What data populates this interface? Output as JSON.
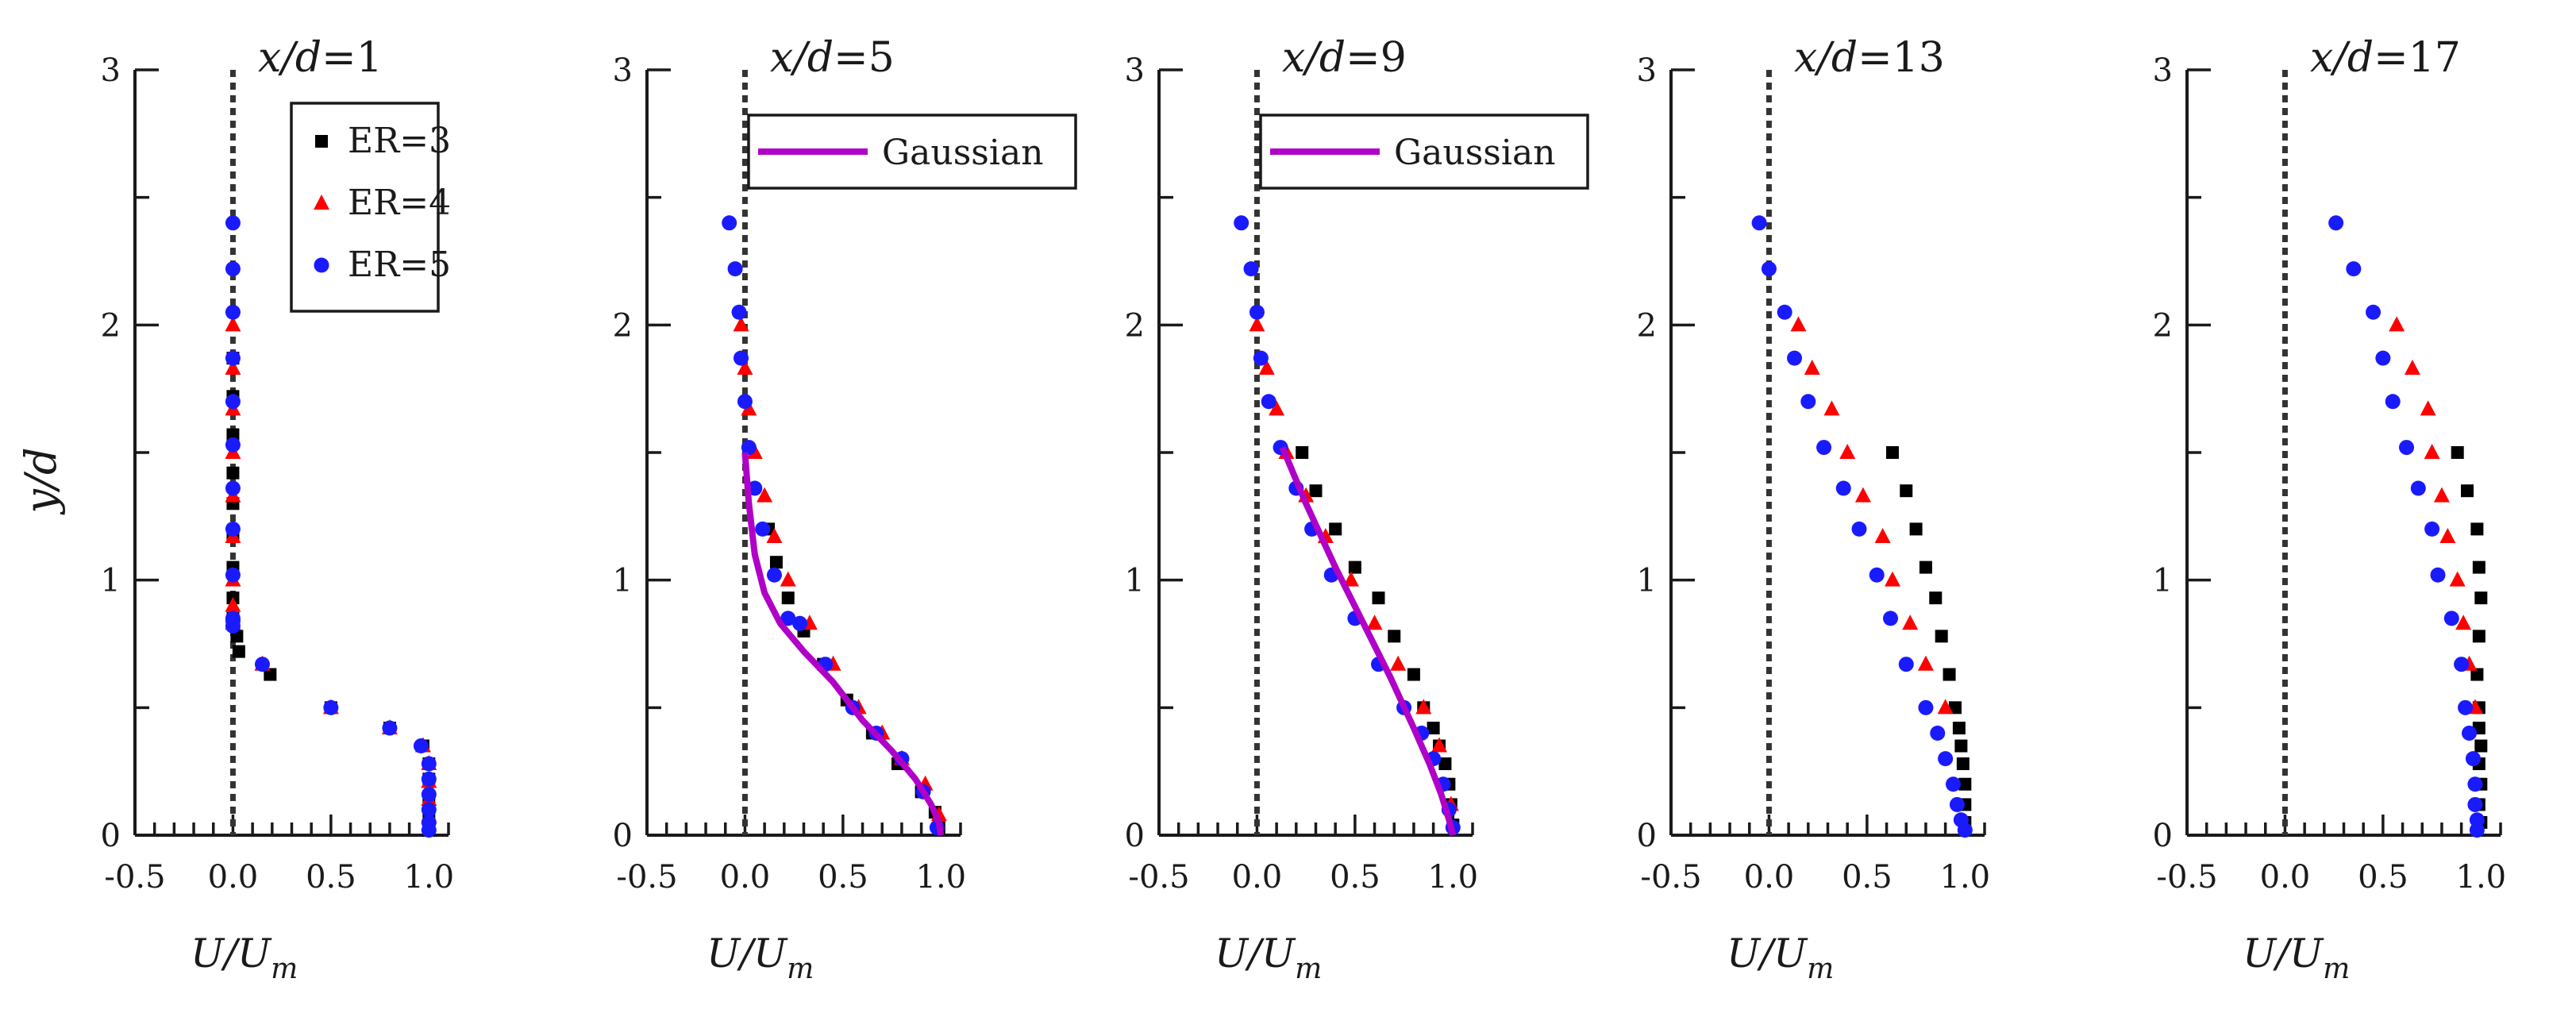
{
  "colors": {
    "er3": "#000000",
    "er4": "#ff0000",
    "er5": "#1a1aff",
    "gaussian": "#b000c8",
    "axis": "#1a1a1a"
  },
  "shared": {
    "ylabel": "y/d",
    "xlabel_main": "U/U",
    "xlabel_sub": "m",
    "xlim": [
      -0.5,
      1.1
    ],
    "ylim": [
      0,
      3
    ],
    "x_tick_labels": [
      "-0.5",
      "0.0",
      "0.5",
      "1.0"
    ],
    "y_tick_labels": [
      "0",
      "1",
      "2",
      "3"
    ]
  },
  "legend": {
    "er3": "ER=3",
    "er4": "ER=4",
    "er5": "ER=5",
    "gaussian": "Gaussian"
  },
  "chart_data": [
    {
      "type": "scatter",
      "title_main": "x/d",
      "title_value": "=1",
      "xlabel": "U/Um",
      "ylabel": "y/d",
      "xlim": [
        -0.5,
        1.1
      ],
      "ylim": [
        0,
        3
      ],
      "legend": "ER",
      "series": [
        {
          "name": "ER=3",
          "marker": "square",
          "x": [
            0.0,
            0.0,
            0.0,
            0.0,
            0.0,
            0.0,
            0.0,
            0.0,
            0.0,
            0.02,
            0.03,
            0.19,
            0.5,
            0.8,
            0.97,
            1.0,
            1.0,
            1.0,
            1.0,
            1.0
          ],
          "y": [
            1.87,
            1.72,
            1.57,
            1.42,
            1.3,
            1.17,
            1.05,
            0.93,
            0.85,
            0.78,
            0.72,
            0.63,
            0.5,
            0.42,
            0.35,
            0.28,
            0.22,
            0.14,
            0.07,
            0.02
          ]
        },
        {
          "name": "ER=4",
          "marker": "triangle",
          "x": [
            0.0,
            0.0,
            0.0,
            0.0,
            0.0,
            0.0,
            0.0,
            0.0,
            0.0,
            0.15,
            0.5,
            0.8,
            0.97,
            1.0,
            1.0,
            1.0,
            1.0
          ],
          "y": [
            2.0,
            1.83,
            1.67,
            1.5,
            1.33,
            1.17,
            1.0,
            0.9,
            0.83,
            0.67,
            0.5,
            0.42,
            0.35,
            0.28,
            0.21,
            0.14,
            0.07
          ]
        },
        {
          "name": "ER=5",
          "marker": "circle",
          "x": [
            0.0,
            0.0,
            0.0,
            0.0,
            0.0,
            0.0,
            0.0,
            0.0,
            0.0,
            0.0,
            0.0,
            0.0,
            0.15,
            0.5,
            0.8,
            0.96,
            1.0,
            1.0,
            1.0,
            1.0,
            1.0,
            1.0
          ],
          "y": [
            2.4,
            2.22,
            2.05,
            1.87,
            1.7,
            1.53,
            1.36,
            1.2,
            1.02,
            0.85,
            0.84,
            0.82,
            0.67,
            0.5,
            0.42,
            0.35,
            0.28,
            0.22,
            0.16,
            0.1,
            0.05,
            0.02
          ]
        }
      ]
    },
    {
      "type": "scatter",
      "title_main": "x/d",
      "title_value": "=5",
      "xlabel": "U/Um",
      "ylabel": "y/d",
      "xlim": [
        -0.5,
        1.1
      ],
      "ylim": [
        0,
        3
      ],
      "legend": "gaussian",
      "series": [
        {
          "name": "ER=3",
          "marker": "square",
          "x": [
            0.12,
            0.16,
            0.22,
            0.3,
            0.4,
            0.52,
            0.65,
            0.78,
            0.9,
            0.97,
            0.99
          ],
          "y": [
            1.2,
            1.07,
            0.93,
            0.8,
            0.67,
            0.53,
            0.4,
            0.28,
            0.17,
            0.09,
            0.03
          ]
        },
        {
          "name": "ER=4",
          "marker": "triangle",
          "x": [
            -0.02,
            0.0,
            0.02,
            0.05,
            0.1,
            0.15,
            0.22,
            0.33,
            0.45,
            0.58,
            0.7,
            0.8,
            0.92,
            0.99
          ],
          "y": [
            2.0,
            1.83,
            1.67,
            1.5,
            1.33,
            1.17,
            1.0,
            0.83,
            0.67,
            0.5,
            0.4,
            0.3,
            0.2,
            0.08
          ]
        },
        {
          "name": "ER=5",
          "marker": "circle",
          "x": [
            -0.08,
            -0.05,
            -0.03,
            -0.02,
            0.0,
            0.02,
            0.05,
            0.09,
            0.15,
            0.22,
            0.28,
            0.41,
            0.55,
            0.67,
            0.8,
            0.91,
            0.98
          ],
          "y": [
            2.4,
            2.22,
            2.05,
            1.87,
            1.7,
            1.52,
            1.36,
            1.2,
            1.02,
            0.85,
            0.83,
            0.67,
            0.5,
            0.4,
            0.3,
            0.17,
            0.03
          ]
        },
        {
          "name": "Gaussian",
          "line": true,
          "x": [
            0.0,
            0.02,
            0.05,
            0.1,
            0.18,
            0.3,
            0.45,
            0.6,
            0.75,
            0.87,
            0.95,
            0.99,
            1.0
          ],
          "y": [
            1.5,
            1.3,
            1.1,
            0.95,
            0.83,
            0.72,
            0.6,
            0.45,
            0.33,
            0.22,
            0.12,
            0.05,
            0.0
          ]
        }
      ]
    },
    {
      "type": "scatter",
      "title_main": "x/d",
      "title_value": "=9",
      "xlabel": "U/Um",
      "ylabel": "y/d",
      "xlim": [
        -0.5,
        1.1
      ],
      "ylim": [
        0,
        3
      ],
      "legend": "gaussian",
      "series": [
        {
          "name": "ER=3",
          "marker": "square",
          "x": [
            0.23,
            0.3,
            0.4,
            0.5,
            0.62,
            0.7,
            0.8,
            0.85,
            0.9,
            0.93,
            0.96,
            0.98,
            0.99,
            1.0
          ],
          "y": [
            1.5,
            1.35,
            1.2,
            1.05,
            0.93,
            0.78,
            0.63,
            0.5,
            0.42,
            0.35,
            0.28,
            0.2,
            0.12,
            0.04
          ]
        },
        {
          "name": "ER=4",
          "marker": "triangle",
          "x": [
            0.0,
            0.05,
            0.1,
            0.15,
            0.25,
            0.35,
            0.48,
            0.6,
            0.72,
            0.85,
            0.93,
            0.99
          ],
          "y": [
            2.0,
            1.83,
            1.67,
            1.5,
            1.33,
            1.17,
            1.0,
            0.83,
            0.67,
            0.5,
            0.35,
            0.12
          ]
        },
        {
          "name": "ER=5",
          "marker": "circle",
          "x": [
            -0.08,
            -0.03,
            0.0,
            0.02,
            0.06,
            0.12,
            0.2,
            0.28,
            0.38,
            0.5,
            0.62,
            0.75,
            0.84,
            0.9,
            0.95,
            0.98,
            1.0
          ],
          "y": [
            2.4,
            2.22,
            2.05,
            1.87,
            1.7,
            1.52,
            1.36,
            1.2,
            1.02,
            0.85,
            0.67,
            0.5,
            0.4,
            0.3,
            0.2,
            0.1,
            0.03
          ]
        },
        {
          "name": "Gaussian",
          "line": true,
          "x": [
            0.13,
            0.25,
            0.4,
            0.55,
            0.68,
            0.8,
            0.88,
            0.94,
            0.98,
            1.0
          ],
          "y": [
            1.52,
            1.3,
            1.05,
            0.82,
            0.62,
            0.42,
            0.28,
            0.16,
            0.06,
            0.0
          ]
        }
      ]
    },
    {
      "type": "scatter",
      "title_main": "x/d",
      "title_value": "=13",
      "xlabel": "U/Um",
      "ylabel": "y/d",
      "xlim": [
        -0.5,
        1.1
      ],
      "ylim": [
        0,
        3
      ],
      "legend": "none",
      "series": [
        {
          "name": "ER=3",
          "marker": "square",
          "x": [
            0.63,
            0.7,
            0.75,
            0.8,
            0.85,
            0.88,
            0.92,
            0.95,
            0.97,
            0.98,
            0.99,
            1.0,
            1.0,
            1.0
          ],
          "y": [
            1.5,
            1.35,
            1.2,
            1.05,
            0.93,
            0.78,
            0.63,
            0.5,
            0.42,
            0.35,
            0.28,
            0.2,
            0.12,
            0.05
          ]
        },
        {
          "name": "ER=4",
          "marker": "triangle",
          "x": [
            0.15,
            0.22,
            0.32,
            0.4,
            0.48,
            0.58,
            0.63,
            0.72,
            0.8,
            0.9
          ],
          "y": [
            2.0,
            1.83,
            1.67,
            1.5,
            1.33,
            1.17,
            1.0,
            0.83,
            0.67,
            0.5
          ]
        },
        {
          "name": "ER=5",
          "marker": "circle",
          "x": [
            -0.05,
            0.0,
            0.08,
            0.13,
            0.2,
            0.28,
            0.38,
            0.46,
            0.55,
            0.62,
            0.7,
            0.8,
            0.86,
            0.9,
            0.94,
            0.96,
            0.98,
            1.0
          ],
          "y": [
            2.4,
            2.22,
            2.05,
            1.87,
            1.7,
            1.52,
            1.36,
            1.2,
            1.02,
            0.85,
            0.67,
            0.5,
            0.4,
            0.3,
            0.2,
            0.12,
            0.06,
            0.02
          ]
        }
      ]
    },
    {
      "type": "scatter",
      "title_main": "x/d",
      "title_value": "=17",
      "xlabel": "U/Um",
      "ylabel": "y/d",
      "xlim": [
        -0.5,
        1.1
      ],
      "ylim": [
        0,
        3
      ],
      "legend": "none",
      "series": [
        {
          "name": "ER=3",
          "marker": "square",
          "x": [
            0.88,
            0.93,
            0.98,
            0.99,
            1.0,
            0.99,
            0.98,
            0.99,
            0.99,
            1.0,
            0.99,
            1.0,
            0.99,
            1.0
          ],
          "y": [
            1.5,
            1.35,
            1.2,
            1.05,
            0.93,
            0.78,
            0.63,
            0.5,
            0.42,
            0.35,
            0.28,
            0.2,
            0.12,
            0.05
          ]
        },
        {
          "name": "ER=4",
          "marker": "triangle",
          "x": [
            0.57,
            0.65,
            0.73,
            0.75,
            0.8,
            0.83,
            0.88,
            0.91,
            0.94,
            0.97
          ],
          "y": [
            2.0,
            1.83,
            1.67,
            1.5,
            1.33,
            1.17,
            1.0,
            0.83,
            0.67,
            0.5
          ]
        },
        {
          "name": "ER=5",
          "marker": "circle",
          "x": [
            0.26,
            0.35,
            0.45,
            0.5,
            0.55,
            0.62,
            0.68,
            0.75,
            0.78,
            0.85,
            0.9,
            0.92,
            0.94,
            0.96,
            0.97,
            0.97,
            0.98,
            0.98
          ],
          "y": [
            2.4,
            2.22,
            2.05,
            1.87,
            1.7,
            1.52,
            1.36,
            1.2,
            1.02,
            0.85,
            0.67,
            0.5,
            0.4,
            0.3,
            0.2,
            0.12,
            0.06,
            0.02
          ]
        }
      ]
    }
  ]
}
